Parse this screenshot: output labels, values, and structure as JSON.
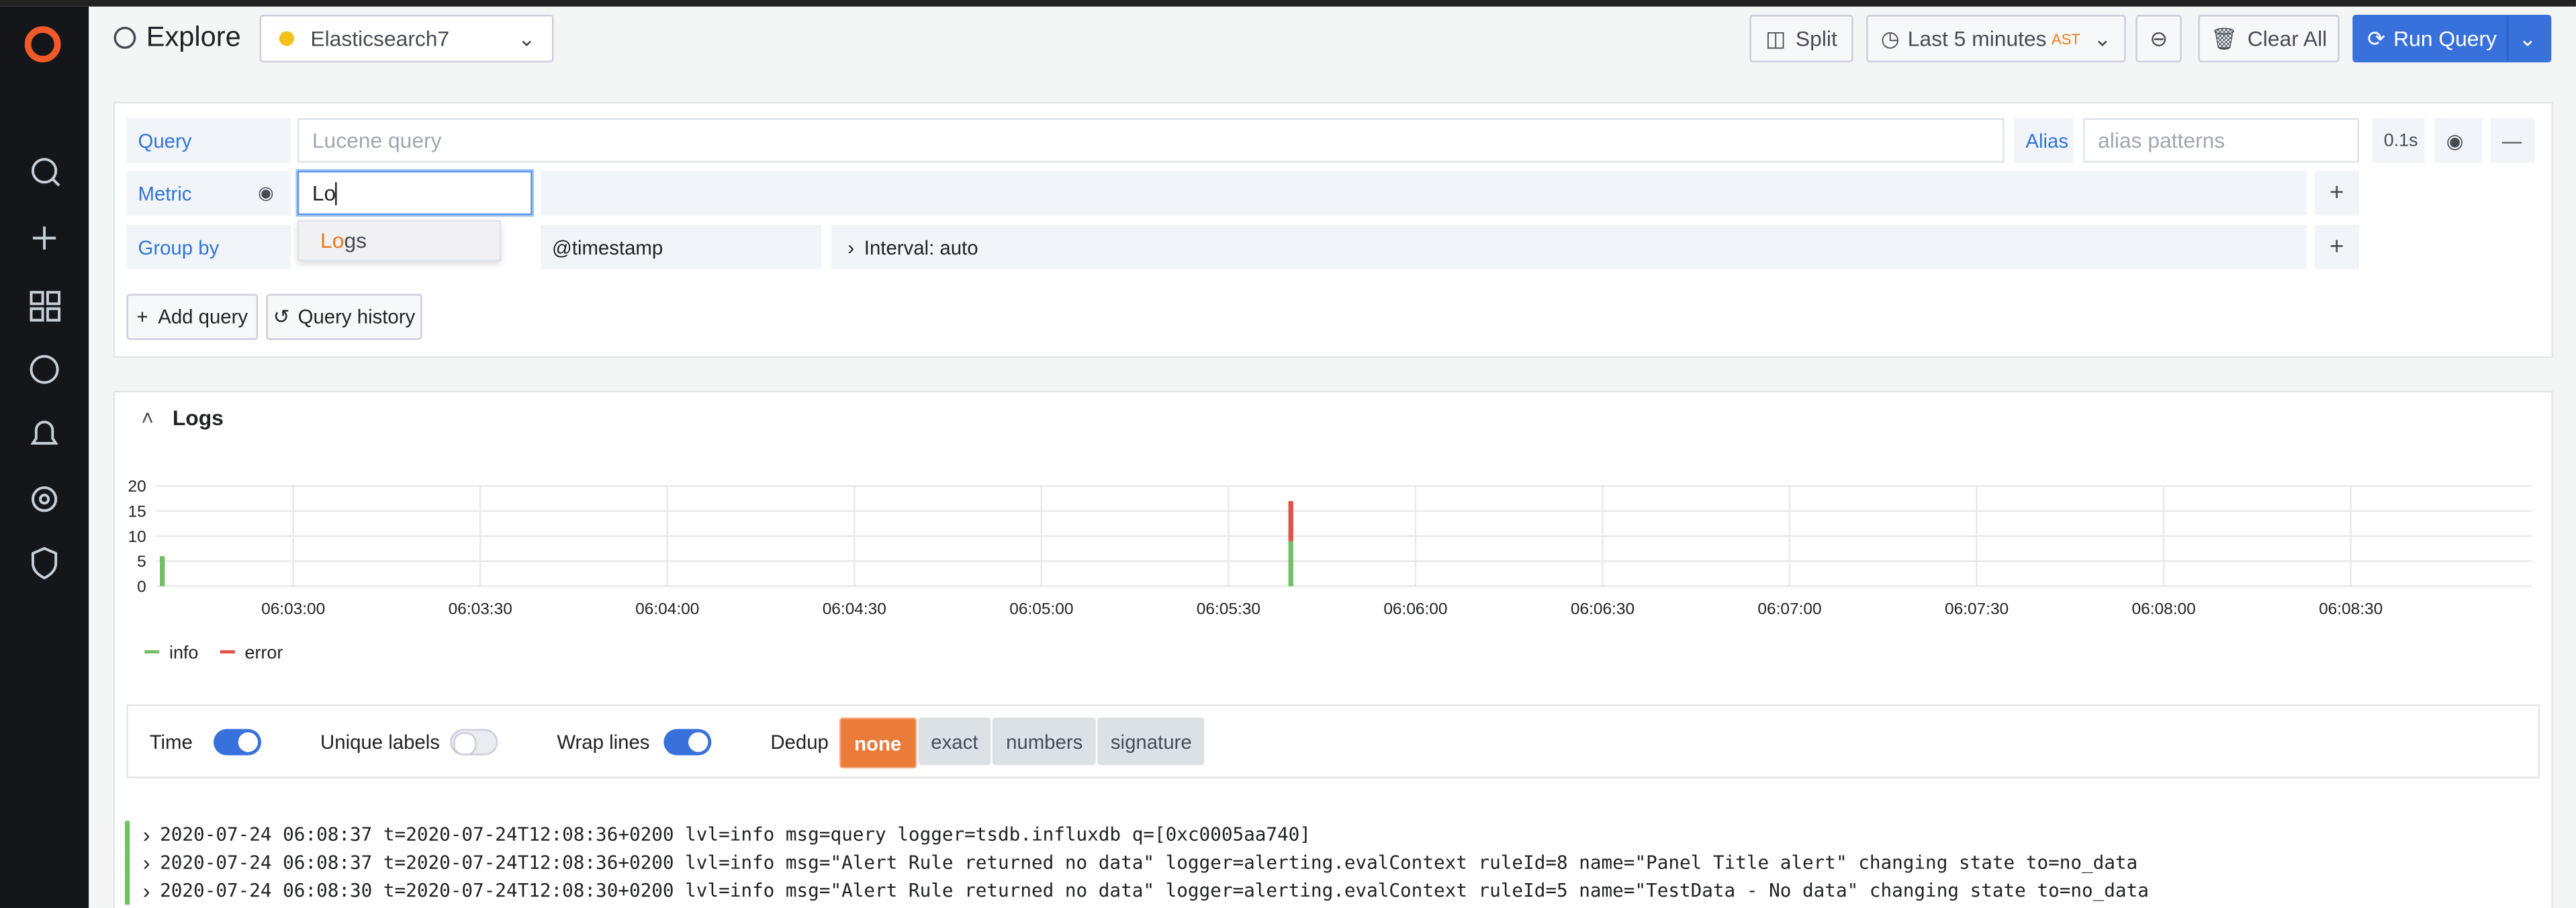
{
  "header": {
    "title": "Explore",
    "datasource": "Elasticsearch7",
    "split": "Split",
    "time_range": "Last 5 minutes",
    "timezone": "AST",
    "clear_all": "Clear All",
    "run_query": "Run Query"
  },
  "query_editor": {
    "query_label": "Query",
    "query_placeholder": "Lucene query",
    "alias_label": "Alias",
    "alias_placeholder": "alias patterns",
    "query_time": "0.1s",
    "metric_label": "Metric",
    "metric_input": "Lo",
    "metric_option": "Logs",
    "group_by_label": "Group by",
    "group_by_field": "@timestamp",
    "interval": "Interval: auto",
    "add_query": "Add query",
    "query_history": "Query history"
  },
  "logs_panel": {
    "title": "Logs"
  },
  "chart_data": {
    "type": "bar",
    "stacked": true,
    "x": [
      "06:02:39",
      "06:05:40"
    ],
    "series": [
      {
        "name": "info",
        "color": "#73bf69",
        "values": [
          6,
          9
        ]
      },
      {
        "name": "error",
        "color": "#e0524a",
        "values": [
          0,
          8
        ]
      }
    ],
    "xlim": [
      "06:02:38",
      "06:08:59"
    ],
    "xticks": [
      "06:03:00",
      "06:03:30",
      "06:04:00",
      "06:04:30",
      "06:05:00",
      "06:05:30",
      "06:06:00",
      "06:06:30",
      "06:07:00",
      "06:07:30",
      "06:08:00",
      "06:08:30"
    ],
    "ylim": [
      0,
      20
    ],
    "yticks": [
      0,
      5,
      10,
      15,
      20
    ],
    "grid": true,
    "legend": "bottom-left"
  },
  "log_options": {
    "time": "Time",
    "unique_labels": "Unique labels",
    "wrap_lines": "Wrap lines",
    "dedup": "Dedup",
    "dedup_modes": [
      "none",
      "exact",
      "numbers",
      "signature"
    ]
  },
  "log_lines": [
    "2020-07-24 06:08:37 t=2020-07-24T12:08:36+0200 lvl=info msg=query logger=tsdb.influxdb q=[0xc0005aa740]",
    "2020-07-24 06:08:37 t=2020-07-24T12:08:36+0200 lvl=info msg=\"Alert Rule returned no data\" logger=alerting.evalContext ruleId=8 name=\"Panel Title alert\" changing state to=no_data",
    "2020-07-24 06:08:30 t=2020-07-24T12:08:30+0200 lvl=info msg=\"Alert Rule returned no data\" logger=alerting.evalContext ruleId=5 name=\"TestData - No data\" changing state to=no_data"
  ]
}
